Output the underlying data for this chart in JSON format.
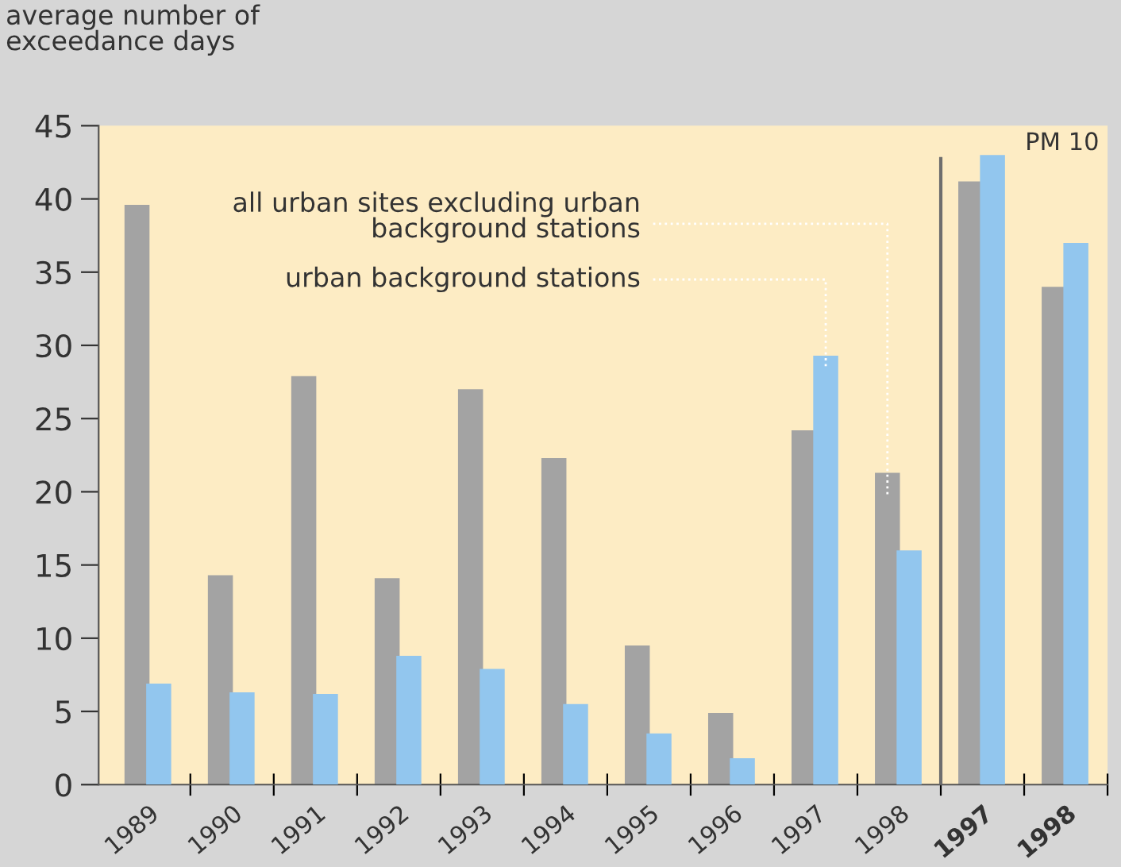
{
  "chart_data": {
    "type": "bar",
    "ylabel": "average number of\nexceedance days",
    "categories": [
      "1989",
      "1990",
      "1991",
      "1992",
      "1993",
      "1994",
      "1995",
      "1996",
      "1997",
      "1998",
      "1997",
      "1998"
    ],
    "series": [
      {
        "name": "all urban sites excluding urban\nbackground stations",
        "color": "#a3a3a3",
        "values": [
          39.6,
          14.3,
          27.9,
          14.1,
          27.0,
          22.3,
          9.5,
          4.9,
          24.2,
          21.3,
          41.2,
          34.0
        ]
      },
      {
        "name": "urban background stations",
        "color": "#92c6ee",
        "values": [
          6.9,
          6.3,
          6.2,
          8.8,
          7.9,
          5.5,
          3.5,
          1.8,
          29.3,
          16.0,
          43.0,
          37.0
        ]
      }
    ],
    "ylim": [
      0,
      45
    ],
    "yticks": [
      0,
      5,
      10,
      15,
      20,
      25,
      30,
      35,
      40,
      45
    ],
    "grid": false,
    "annotations": [
      "PM 10"
    ]
  }
}
